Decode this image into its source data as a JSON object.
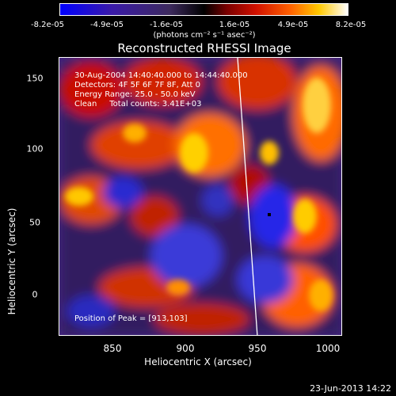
{
  "colorbar": {
    "ticks": [
      "-8.2e-05",
      "-4.9e-05",
      "-1.6e-05",
      "1.6e-05",
      "4.9e-05",
      "8.2e-05"
    ],
    "units": "(photons cm⁻² s⁻¹ asec⁻²)"
  },
  "title": "Reconstructed RHESSI Image",
  "info": {
    "line1": "30-Aug-2004 14:40:40.000 to 14:44:40.000",
    "line2": "Detectors: 4F 5F 6F 7F 8F, Att 0",
    "line3": "Energy Range: 25.0 - 50.0 keV",
    "line4": "Clean     Total counts: 3.41E+03"
  },
  "peak_label": "Position of Peak = [913,103]",
  "axes": {
    "x_title": "Heliocentric X (arcsec)",
    "y_title": "Heliocentric Y (arcsec)",
    "x_ticks": [
      "850",
      "900",
      "950",
      "1000"
    ],
    "y_ticks": [
      "150",
      "100",
      "50",
      "0"
    ]
  },
  "timestamp": "23-Jun-2013 14:22"
}
